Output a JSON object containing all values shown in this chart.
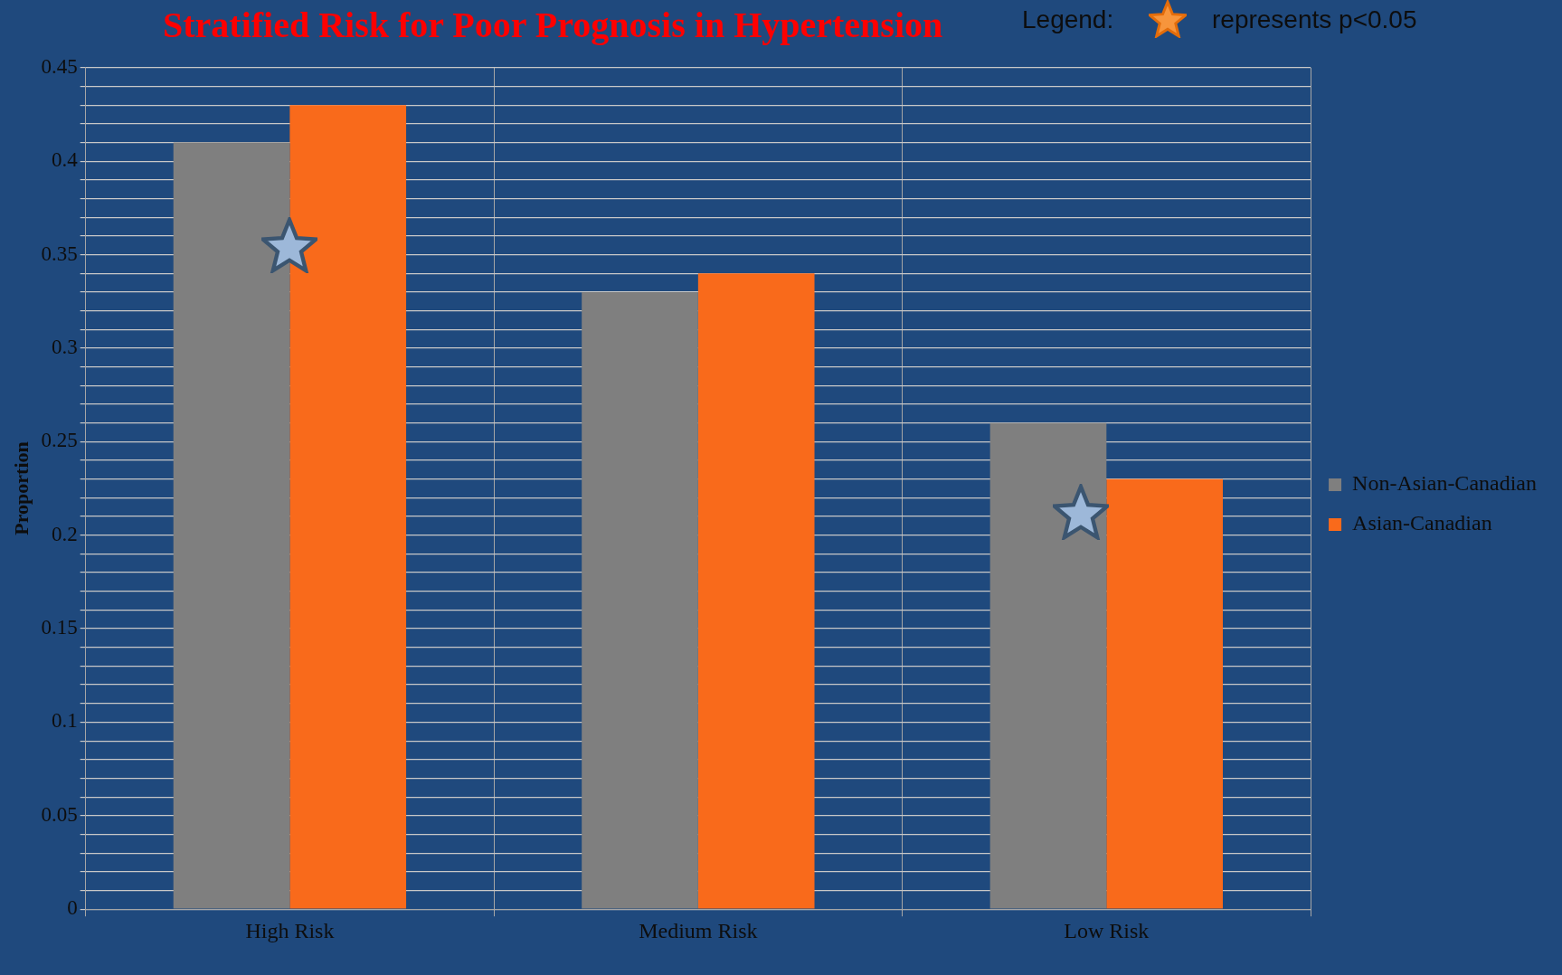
{
  "chart_data": {
    "type": "bar",
    "title": "Stratified Risk for Poor Prognosis in Hypertension",
    "ylabel": "Proportion",
    "annotations": [
      "Legend:",
      "represents p<0.05"
    ],
    "categories": [
      "High Risk",
      "Medium Risk",
      "Low Risk"
    ],
    "series": [
      {
        "name": "Non-Asian-Canadian",
        "color": "#7f7f7f",
        "values": [
          0.41,
          0.33,
          0.26
        ]
      },
      {
        "name": "Asian-Canadian",
        "color": "#f96a1b",
        "values": [
          0.43,
          0.34,
          0.23
        ]
      }
    ],
    "ylim": [
      0,
      0.45
    ],
    "yticks": [
      0,
      {
        "value": 0.01,
        "label": null
      },
      {
        "value": 0.02,
        "label": null
      },
      {
        "value": 0.03,
        "label": null
      },
      {
        "value": 0.04,
        "label": null
      },
      0.05,
      {
        "value": 0.06,
        "label": null
      },
      {
        "value": 0.07,
        "label": null
      },
      {
        "value": 0.08,
        "label": null
      },
      {
        "value": 0.09,
        "label": null
      },
      0.1,
      {
        "value": 0.11,
        "label": null
      },
      {
        "value": 0.12,
        "label": null
      },
      {
        "value": 0.13,
        "label": null
      },
      {
        "value": 0.14,
        "label": null
      },
      0.15,
      {
        "value": 0.16,
        "label": null
      },
      {
        "value": 0.17,
        "label": null
      },
      {
        "value": 0.18,
        "label": null
      },
      {
        "value": 0.19,
        "label": null
      },
      0.2,
      {
        "value": 0.21,
        "label": null
      },
      {
        "value": 0.22,
        "label": null
      },
      {
        "value": 0.23,
        "label": null
      },
      {
        "value": 0.24,
        "label": null
      },
      0.25,
      {
        "value": 0.26,
        "label": null
      },
      {
        "value": 0.27,
        "label": null
      },
      {
        "value": 0.28,
        "label": null
      },
      {
        "value": 0.29,
        "label": null
      },
      0.3,
      {
        "value": 0.31,
        "label": null
      },
      {
        "value": 0.32,
        "label": null
      },
      {
        "value": 0.33,
        "label": null
      },
      {
        "value": 0.34,
        "label": null
      },
      0.35,
      {
        "value": 0.36,
        "label": null
      },
      {
        "value": 0.37,
        "label": null
      },
      {
        "value": 0.38,
        "label": null
      },
      {
        "value": 0.39,
        "label": null
      },
      0.4,
      {
        "value": 0.41,
        "label": null
      },
      {
        "value": 0.42,
        "label": null
      },
      {
        "value": 0.43,
        "label": null
      },
      {
        "value": 0.44,
        "label": null
      },
      0.45
    ],
    "grid": true,
    "legend": "right"
  }
}
